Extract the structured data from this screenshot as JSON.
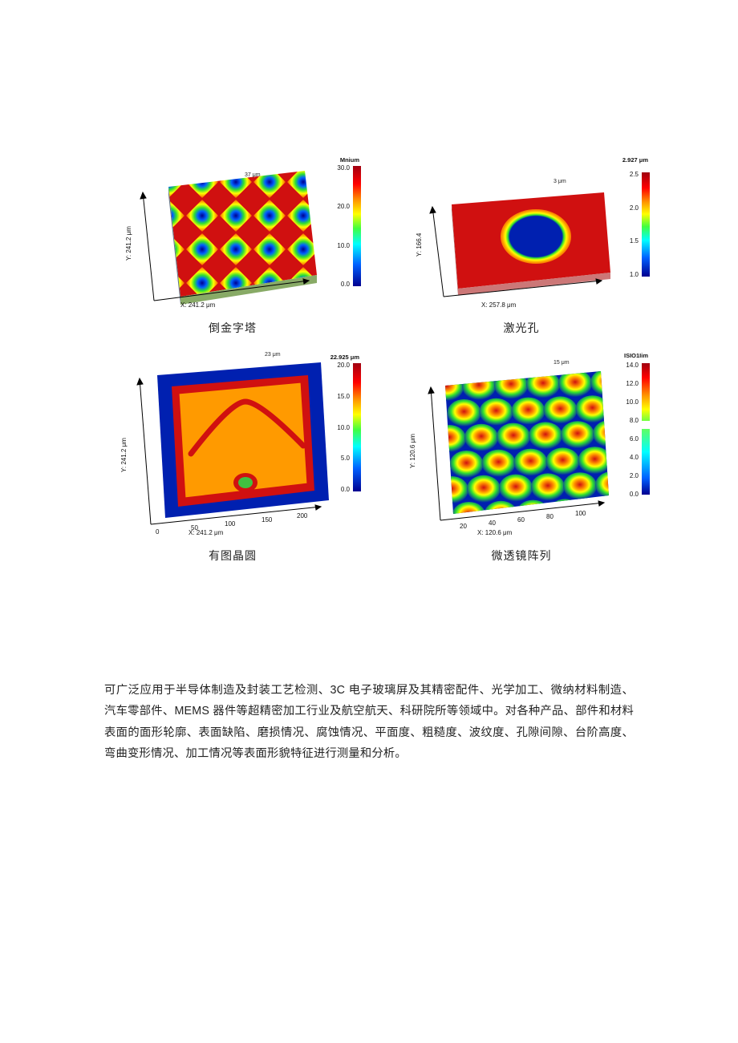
{
  "figures": [
    {
      "caption": "倒金字塔",
      "colorbar_title": "Mnium",
      "colorbar_ticks": [
        "30.0",
        "20.0",
        "10.0",
        "0.0"
      ],
      "x_axis": "X: 241.2 μm",
      "y_axis": "Y: 241.2 μm",
      "peak_label": "37 μm",
      "type": "surface-diamond-grid",
      "colors": {
        "high": "#d01010",
        "mid_high": "#ff9000",
        "mid": "#ffff00",
        "mid_low": "#30e030",
        "low": "#0060ff",
        "bottom": "#000090"
      }
    },
    {
      "caption": "激光孔",
      "colorbar_title": "2.927 μm",
      "colorbar_ticks": [
        "2.5",
        "2.0",
        "1.5",
        "1.0"
      ],
      "x_axis": "X: 257.8 μm",
      "y_axis": "Y: 166.4",
      "peak_label": "3 μm",
      "type": "surface-hole",
      "colors": {
        "plane": "#d01010",
        "rim": "#ff9000",
        "hole": "#0020b0",
        "bg": "#ffffff"
      }
    },
    {
      "caption": "有图晶圆",
      "colorbar_title": "22.925 μm",
      "colorbar_ticks": [
        "20.0",
        "15.0",
        "10.0",
        "5.0",
        "0.0"
      ],
      "x_axis": "X: 241.2 μm",
      "y_axis": "Y: 241.2 μm",
      "peak_label": "23 μm",
      "x_ticks": [
        "0",
        "50",
        "100",
        "150",
        "200"
      ],
      "type": "wafer-pattern",
      "colors": {
        "pad": "#ff9a00",
        "pad_edge": "#d01010",
        "trace": "#d01010",
        "via": "#40c040",
        "field": "#0020b0"
      }
    },
    {
      "caption": "微透镜阵列",
      "colorbar_title": "ISIO1Iim",
      "colorbar_ticks": [
        "14.0",
        "12.0",
        "10.0",
        "8.0",
        "6.0",
        "4.0",
        "2.0",
        "0.0"
      ],
      "x_axis": "X: 120.6 μm",
      "y_axis": "Y: 120.6 μm",
      "peak_label": "15 μm",
      "x_ticks": [
        "20",
        "40",
        "60",
        "80",
        "100"
      ],
      "type": "lens-array",
      "colors": {
        "peak": "#d01010",
        "ring1": "#ff9000",
        "ring2": "#ffff00",
        "ring3": "#30e030",
        "valley": "#0020b0"
      }
    }
  ],
  "body_text": "可广泛应用于半导体制造及封装工艺检测、3C 电子玻璃屏及其精密配件、光学加工、微纳材料制造、汽车零部件、MEMS 器件等超精密加工行业及航空航天、科研院所等领域中。对各种产品、部件和材料表面的面形轮廓、表面缺陷、磨损情况、腐蚀情况、平面度、粗糙度、波纹度、孔隙间隙、台阶高度、弯曲变形情况、加工情况等表面形貌特征进行测量和分析。",
  "style": {
    "page_bg": "#ffffff",
    "text_color": "#222222",
    "caption_fontsize": 14,
    "body_fontsize": 14.3,
    "body_line_height": 1.85
  }
}
